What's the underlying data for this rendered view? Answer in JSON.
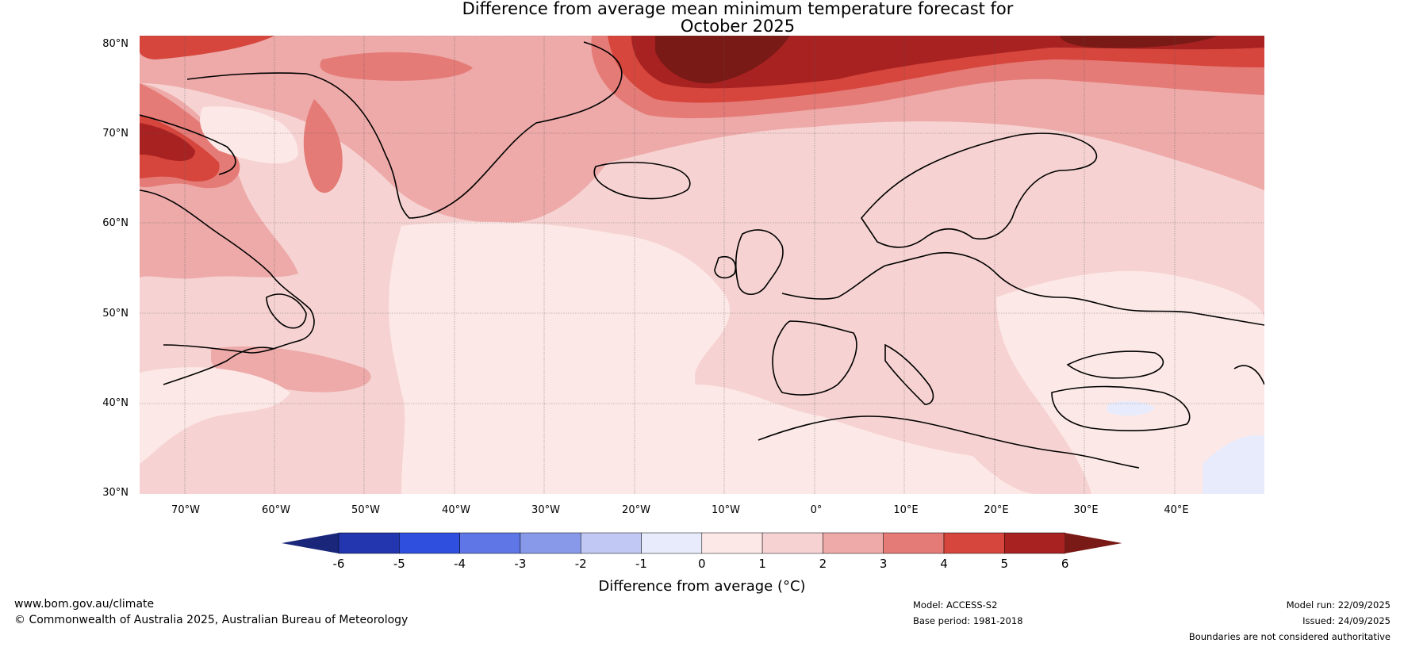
{
  "title": {
    "line1": "Difference from average mean minimum temperature forecast for",
    "line2": "October 2025"
  },
  "map": {
    "latitude_labels": [
      "80°N",
      "70°N",
      "60°N",
      "50°N",
      "40°N",
      "30°N"
    ],
    "longitude_labels": [
      "70°W",
      "60°W",
      "50°W",
      "40°W",
      "30°W",
      "20°W",
      "10°W",
      "0°",
      "10°E",
      "20°E",
      "30°E",
      "40°E"
    ],
    "lat_range": [
      30,
      81
    ],
    "lon_range": [
      -75,
      50
    ],
    "regions": [
      {
        "name": "north-atlantic-open-ocean",
        "anomaly_class": "0 to 1"
      },
      {
        "name": "greenland-sea",
        "anomaly_class": "2 to 3"
      },
      {
        "name": "svalbard-north",
        "anomaly_class": "above 6"
      },
      {
        "name": "baffin-island",
        "anomaly_class": "4 to 6"
      },
      {
        "name": "europe",
        "anomaly_class": "1 to 2"
      },
      {
        "name": "black-sea-area",
        "anomaly_class": "0 to 1"
      },
      {
        "name": "eastern-mediterranean-se",
        "anomaly_class": "-1 to 0"
      }
    ]
  },
  "colorbar": {
    "label": "Difference from average (°C)",
    "ticks": [
      "-6",
      "-5",
      "-4",
      "-3",
      "-2",
      "-1",
      "0",
      "1",
      "2",
      "3",
      "4",
      "5",
      "6"
    ],
    "colors": [
      "#19267a",
      "#2336b0",
      "#2f4fdf",
      "#5f77e6",
      "#8899ea",
      "#c0c8f3",
      "#e8ebfb",
      "#fce9e7",
      "#f6d3d2",
      "#edaaa9",
      "#e57b77",
      "#d6463d",
      "#a92222",
      "#7a1a16"
    ]
  },
  "footer": {
    "url": "www.bom.gov.au/climate",
    "copyright": "© Commonwealth of Australia 2025, Australian Bureau of Meteorology",
    "model": "Model: ACCESS-S2",
    "base_period": "Base period: 1981-2018",
    "model_run": "Model run: 22/09/2025",
    "issued": "Issued: 24/09/2025",
    "boundaries_note": "Boundaries are not considered authoritative"
  }
}
